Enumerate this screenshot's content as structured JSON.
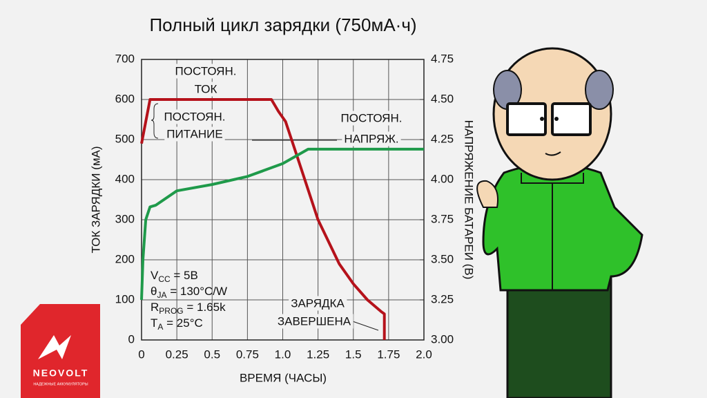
{
  "chart_data": {
    "type": "line",
    "title": "Полный цикл зарядки (750мА·ч)",
    "x_label": "ВРЕМЯ (ЧАСЫ)",
    "y_label": "ТОК ЗАРЯДКИ (мА)",
    "y2_label": "НАПРЯЖЕНИЕ БАТАРЕИ (В)",
    "xlim": [
      0,
      2
    ],
    "xticks": [
      0,
      0.25,
      0.5,
      0.75,
      {
        "value": 1,
        "label": "1.0"
      },
      1.25,
      1.5,
      1.75,
      {
        "value": 2,
        "label": "2.0"
      }
    ],
    "ylim": [
      0,
      700
    ],
    "yticks": [
      0,
      100,
      200,
      300,
      400,
      500,
      600,
      700
    ],
    "y2lim": [
      3,
      4.75
    ],
    "y2ticks": [
      {
        "value": 3,
        "label": "3.00"
      },
      3.25,
      {
        "value": 3.5,
        "label": "3.50"
      },
      3.75,
      {
        "value": 4,
        "label": "4.00"
      },
      4.25,
      {
        "value": 4.5,
        "label": "4.50"
      },
      4.75
    ],
    "grid": true,
    "series": [
      {
        "color": "#b5121b",
        "x": [
          0,
          0.06,
          0.92,
          0.97,
          1.02,
          1.1,
          1.25,
          1.4,
          1.5,
          1.6,
          1.7,
          1.72,
          1.72
        ],
        "values": [
          490,
          600,
          600,
          570,
          545,
          460,
          300,
          190,
          140,
          100,
          70,
          65,
          0
        ]
      },
      {
        "color": "#1f9a4a",
        "axis": "y2",
        "x": [
          0,
          0.01,
          0.03,
          0.06,
          0.1,
          0.25,
          0.5,
          0.75,
          1.0,
          1.18,
          2.0
        ],
        "values": [
          3.25,
          3.5,
          3.75,
          3.83,
          3.84,
          3.93,
          3.97,
          4.02,
          4.1,
          4.19,
          4.19
        ]
      }
    ],
    "annotations": [
      "ПОСТОЯН.",
      "ТОК",
      "ПОСТОЯН.",
      "ПИТАНИЕ",
      "ПОСТОЯН.",
      "НАПРЯЖ.",
      "ЗАРЯДКА",
      "ЗАВЕРШЕНА"
    ],
    "conditions": [
      {
        "main": "V",
        "sub": "CC",
        "rest": " = 5В"
      },
      {
        "main": "θ",
        "sub": "JA",
        "rest": " = 130°C/W"
      },
      {
        "main": "R",
        "sub": "PROG",
        "rest": " = 1.65k"
      },
      {
        "main": "T",
        "sub": "A",
        "rest": " = 25°C"
      }
    ]
  },
  "logo": {
    "name": "NEOVOLT",
    "tagline": "НАДЕЖНЫЕ АККУМУЛЯТОРЫ"
  }
}
